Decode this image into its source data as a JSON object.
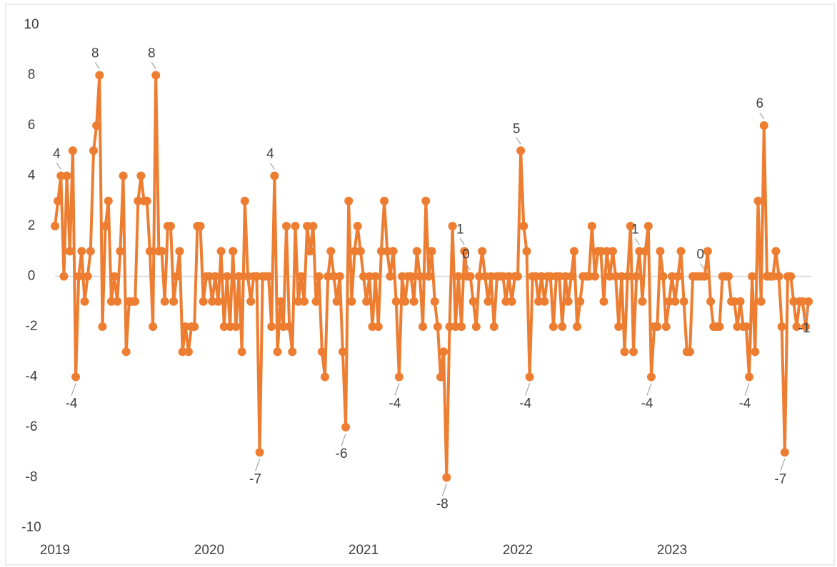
{
  "chart_data": {
    "type": "line",
    "color": "#ed7d31",
    "categories": [
      "2019",
      null,
      null,
      null,
      null,
      null,
      null,
      null,
      null,
      null,
      null,
      null,
      null,
      null,
      null,
      null,
      null,
      null,
      null,
      null,
      null,
      null,
      null,
      null,
      null,
      null,
      null,
      null,
      null,
      null,
      null,
      null,
      null,
      null,
      null,
      null,
      null,
      null,
      null,
      null,
      null,
      null,
      null,
      null,
      null,
      null,
      null,
      null,
      null,
      null,
      null,
      null,
      "2020",
      null,
      null,
      null,
      null,
      null,
      null,
      null,
      null,
      null,
      null,
      null,
      null,
      null,
      null,
      null,
      null,
      null,
      null,
      null,
      null,
      null,
      null,
      null,
      null,
      null,
      null,
      null,
      null,
      null,
      null,
      null,
      null,
      null,
      null,
      null,
      null,
      null,
      null,
      null,
      null,
      null,
      null,
      null,
      null,
      null,
      null,
      null,
      null,
      null,
      null,
      null,
      "2021",
      null,
      null,
      null,
      null,
      null,
      null,
      null,
      null,
      null,
      null,
      null,
      null,
      null,
      null,
      null,
      null,
      null,
      null,
      null,
      null,
      null,
      null,
      null,
      null,
      null,
      null,
      null,
      null,
      null,
      null,
      null,
      null,
      null,
      null,
      null,
      null,
      null,
      null,
      null,
      null,
      null,
      null,
      null,
      null,
      null,
      null,
      null,
      null,
      null,
      null,
      null,
      "2022",
      null,
      null,
      null,
      null,
      null,
      null,
      null,
      null,
      null,
      null,
      null,
      null,
      null,
      null,
      null,
      null,
      null,
      null,
      null,
      null,
      null,
      null,
      null,
      null,
      null,
      null,
      null,
      null,
      null,
      null,
      null,
      null,
      null,
      null,
      null,
      null,
      null,
      null,
      null,
      null,
      null,
      null,
      null,
      null,
      null,
      null,
      null,
      null,
      null,
      null,
      null,
      "2023",
      null,
      null,
      null,
      null,
      null,
      null,
      null,
      null,
      null,
      null,
      null,
      null,
      null,
      null,
      null,
      null,
      null,
      null,
      null,
      null,
      null,
      null,
      null,
      null,
      null,
      null,
      null,
      null,
      null,
      null,
      null,
      null,
      null,
      null,
      null,
      null,
      null,
      null,
      null,
      null,
      null,
      null,
      null,
      null,
      null,
      null
    ],
    "values": [
      2,
      3,
      4,
      0,
      4,
      1,
      5,
      -4,
      0,
      1,
      -1,
      0,
      1,
      5,
      6,
      8,
      -2,
      2,
      3,
      -1,
      0,
      -1,
      1,
      4,
      -3,
      -1,
      -1,
      -1,
      3,
      4,
      3,
      3,
      1,
      -2,
      8,
      1,
      1,
      -1,
      2,
      2,
      -1,
      0,
      1,
      -3,
      -2,
      -3,
      -2,
      -2,
      2,
      2,
      -1,
      0,
      0,
      -1,
      0,
      -1,
      1,
      -2,
      0,
      -2,
      1,
      -2,
      0,
      -3,
      3,
      0,
      -1,
      0,
      0,
      -7,
      0,
      0,
      0,
      -2,
      4,
      -3,
      -1,
      -2,
      2,
      -2,
      -3,
      2,
      -1,
      0,
      -1,
      2,
      1,
      2,
      -1,
      0,
      -3,
      -4,
      0,
      1,
      0,
      -1,
      0,
      -3,
      -6,
      3,
      -1,
      1,
      2,
      1,
      0,
      -1,
      0,
      -2,
      0,
      -2,
      1,
      3,
      1,
      0,
      1,
      -1,
      -4,
      0,
      -1,
      0,
      0,
      -1,
      1,
      0,
      -2,
      3,
      0,
      1,
      -1,
      -2,
      -4,
      -3,
      -8,
      -2,
      2,
      -2,
      0,
      -2,
      1,
      0,
      0,
      -1,
      -2,
      0,
      1,
      0,
      -1,
      0,
      -2,
      0,
      0,
      0,
      -1,
      0,
      -1,
      0,
      0,
      5,
      2,
      1,
      -4,
      0,
      0,
      -1,
      0,
      -1,
      0,
      0,
      -2,
      0,
      0,
      -2,
      0,
      -1,
      0,
      1,
      -2,
      -1,
      0,
      0,
      0,
      2,
      0,
      1,
      1,
      -1,
      1,
      0,
      1,
      0,
      -2,
      0,
      -3,
      0,
      2,
      -3,
      0,
      1,
      -1,
      1,
      2,
      -4,
      -2,
      -2,
      1,
      0,
      -2,
      -1,
      0,
      -1,
      0,
      1,
      -1,
      -3,
      -3,
      0,
      0,
      0,
      0,
      0,
      1,
      -1,
      -2,
      -2,
      -2,
      0,
      0,
      0,
      -1,
      -1,
      -2,
      -1,
      -2,
      -2,
      -4,
      0,
      -3,
      3,
      -1,
      6,
      0,
      0,
      0,
      1,
      0,
      -2,
      -7,
      0,
      0,
      -1,
      -2,
      -1,
      -1,
      -2,
      -1
    ],
    "value_labels": [
      null,
      null,
      "4",
      null,
      null,
      null,
      null,
      "-4",
      null,
      null,
      null,
      null,
      null,
      null,
      null,
      "8",
      null,
      null,
      null,
      null,
      null,
      null,
      null,
      null,
      null,
      null,
      null,
      null,
      null,
      null,
      null,
      null,
      null,
      null,
      "8",
      null,
      null,
      null,
      null,
      null,
      null,
      null,
      null,
      null,
      null,
      null,
      null,
      null,
      null,
      null,
      null,
      null,
      null,
      null,
      null,
      null,
      null,
      null,
      null,
      null,
      null,
      null,
      null,
      null,
      null,
      null,
      null,
      null,
      null,
      "-7",
      null,
      null,
      null,
      null,
      "4",
      null,
      null,
      null,
      null,
      null,
      null,
      null,
      null,
      null,
      null,
      null,
      null,
      null,
      null,
      null,
      null,
      null,
      null,
      null,
      null,
      null,
      null,
      null,
      "-6",
      null,
      null,
      null,
      null,
      null,
      null,
      null,
      null,
      null,
      null,
      null,
      null,
      null,
      null,
      null,
      null,
      null,
      "-4",
      null,
      null,
      null,
      null,
      null,
      null,
      null,
      null,
      null,
      null,
      null,
      null,
      null,
      null,
      null,
      "-8",
      null,
      null,
      null,
      null,
      null,
      "1",
      null,
      "0",
      null,
      null,
      null,
      null,
      null,
      null,
      null,
      null,
      null,
      null,
      null,
      null,
      null,
      null,
      null,
      null,
      "5",
      null,
      null,
      "-4",
      null,
      null,
      null,
      null,
      null,
      null,
      null,
      null,
      null,
      null,
      null,
      null,
      null,
      null,
      null,
      null,
      null,
      null,
      null,
      null,
      null,
      null,
      null,
      null,
      null,
      null,
      null,
      null,
      null,
      null,
      null,
      null,
      null,
      null,
      null,
      null,
      "1",
      null,
      null,
      null,
      "-4",
      null,
      null,
      null,
      null,
      null,
      null,
      null,
      null,
      null,
      null,
      null,
      null,
      null,
      null,
      null,
      null,
      null,
      "0",
      null,
      null,
      null,
      null,
      null,
      null,
      null,
      null,
      null,
      null,
      null,
      null,
      null,
      null,
      "-4",
      null,
      null,
      null,
      null,
      "6",
      null,
      null,
      null,
      null,
      null,
      null,
      "-7",
      null,
      null,
      null,
      null,
      null,
      null,
      null,
      "-1"
    ],
    "ylim": [
      -10,
      10
    ],
    "yticks": [
      -10,
      -8,
      -6,
      -4,
      -2,
      0,
      2,
      4,
      6,
      8,
      10
    ]
  }
}
